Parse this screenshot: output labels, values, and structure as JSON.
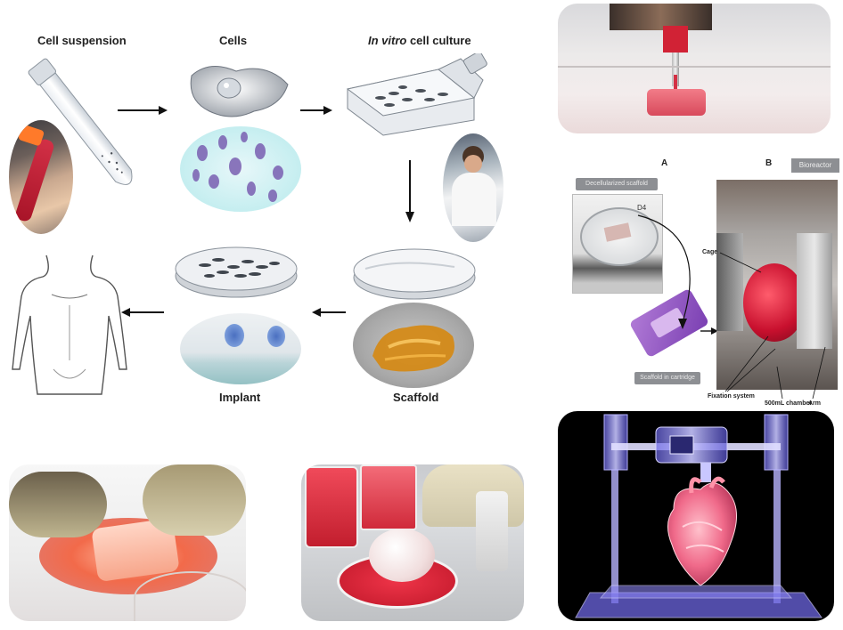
{
  "flow": {
    "cell_suspension": "Cell suspension",
    "cells": "Cells",
    "in_vitro_italic": "In vitro",
    "cell_culture": " cell culture",
    "implant": "Implant",
    "scaffold": "Scaffold"
  },
  "bioreactor": {
    "label_a": "A",
    "label_b": "B",
    "bioreactor_tab": "Bioreactor",
    "cage": "Cage",
    "fixation_system": "Fixation system",
    "chamber": "500mL chamber",
    "arm": "Arm",
    "dish_caption": "D4",
    "top_button": "Decellularized scaffold",
    "bottom_button": "Scaffold in cartridge"
  },
  "colors": {
    "arrow": "#111111",
    "culture_red": "#d9384a",
    "hologram_blue": "#7f7bff",
    "heart_pink": "#f06a8a"
  }
}
